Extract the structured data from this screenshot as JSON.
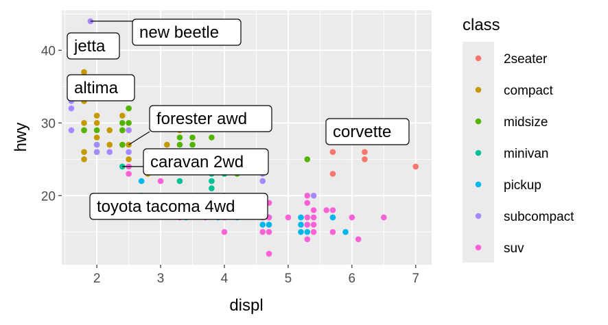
{
  "chart_data": {
    "type": "scatter",
    "xlabel": "displ",
    "ylabel": "hwy",
    "xlim": [
      1.45,
      7.25
    ],
    "ylim": [
      10.5,
      45.5
    ],
    "x_ticks": [
      2,
      3,
      4,
      5,
      6,
      7
    ],
    "y_ticks": [
      20,
      30,
      40
    ],
    "grid": true,
    "legend": {
      "title": "class",
      "position": "right",
      "entries": [
        {
          "name": "2seater",
          "color": "#F8766D"
        },
        {
          "name": "compact",
          "color": "#C49A00"
        },
        {
          "name": "midsize",
          "color": "#53B400"
        },
        {
          "name": "minivan",
          "color": "#00C094"
        },
        {
          "name": "pickup",
          "color": "#00B6EB"
        },
        {
          "name": "subcompact",
          "color": "#A58AFF"
        },
        {
          "name": "suv",
          "color": "#FB61D7"
        }
      ]
    },
    "points": [
      {
        "x": 5.7,
        "y": 26,
        "class": "2seater"
      },
      {
        "x": 5.7,
        "y": 23,
        "class": "2seater"
      },
      {
        "x": 6.2,
        "y": 26,
        "class": "2seater"
      },
      {
        "x": 6.2,
        "y": 25,
        "class": "2seater"
      },
      {
        "x": 7.0,
        "y": 24,
        "class": "2seater"
      },
      {
        "x": 1.8,
        "y": 29,
        "class": "compact"
      },
      {
        "x": 1.8,
        "y": 26,
        "class": "compact"
      },
      {
        "x": 1.8,
        "y": 25,
        "class": "compact"
      },
      {
        "x": 1.8,
        "y": 30,
        "class": "compact"
      },
      {
        "x": 1.8,
        "y": 33,
        "class": "compact"
      },
      {
        "x": 1.8,
        "y": 37,
        "class": "compact"
      },
      {
        "x": 1.8,
        "y": 35,
        "class": "compact"
      },
      {
        "x": 2.0,
        "y": 31,
        "class": "compact"
      },
      {
        "x": 2.0,
        "y": 28,
        "class": "compact"
      },
      {
        "x": 2.0,
        "y": 30,
        "class": "compact"
      },
      {
        "x": 2.0,
        "y": 26,
        "class": "compact"
      },
      {
        "x": 2.2,
        "y": 29,
        "class": "compact"
      },
      {
        "x": 2.2,
        "y": 27,
        "class": "compact"
      },
      {
        "x": 2.4,
        "y": 31,
        "class": "compact"
      },
      {
        "x": 2.4,
        "y": 29,
        "class": "compact"
      },
      {
        "x": 2.4,
        "y": 27,
        "class": "compact"
      },
      {
        "x": 2.5,
        "y": 29,
        "class": "compact"
      },
      {
        "x": 2.5,
        "y": 27,
        "class": "compact"
      },
      {
        "x": 2.5,
        "y": 25,
        "class": "compact"
      },
      {
        "x": 2.8,
        "y": 26,
        "class": "compact"
      },
      {
        "x": 2.8,
        "y": 23,
        "class": "compact"
      },
      {
        "x": 3.1,
        "y": 27,
        "class": "compact"
      },
      {
        "x": 3.3,
        "y": 29,
        "class": "compact"
      },
      {
        "x": 1.8,
        "y": 29,
        "class": "midsize"
      },
      {
        "x": 2.0,
        "y": 29,
        "class": "midsize"
      },
      {
        "x": 2.0,
        "y": 27,
        "class": "midsize"
      },
      {
        "x": 2.4,
        "y": 30,
        "class": "midsize"
      },
      {
        "x": 2.4,
        "y": 29,
        "class": "midsize"
      },
      {
        "x": 2.4,
        "y": 27,
        "class": "midsize"
      },
      {
        "x": 2.5,
        "y": 32,
        "class": "midsize"
      },
      {
        "x": 2.5,
        "y": 30,
        "class": "midsize"
      },
      {
        "x": 3.3,
        "y": 28,
        "class": "midsize"
      },
      {
        "x": 3.3,
        "y": 27,
        "class": "midsize"
      },
      {
        "x": 3.5,
        "y": 28,
        "class": "midsize"
      },
      {
        "x": 3.5,
        "y": 27,
        "class": "midsize"
      },
      {
        "x": 3.8,
        "y": 28,
        "class": "midsize"
      },
      {
        "x": 3.8,
        "y": 26,
        "class": "midsize"
      },
      {
        "x": 4.0,
        "y": 23,
        "class": "midsize"
      },
      {
        "x": 4.2,
        "y": 23,
        "class": "midsize"
      },
      {
        "x": 5.3,
        "y": 25,
        "class": "midsize"
      },
      {
        "x": 2.4,
        "y": 24,
        "class": "minivan"
      },
      {
        "x": 3.0,
        "y": 24,
        "class": "minivan"
      },
      {
        "x": 3.3,
        "y": 22,
        "class": "minivan"
      },
      {
        "x": 3.3,
        "y": 24,
        "class": "minivan"
      },
      {
        "x": 3.8,
        "y": 22,
        "class": "minivan"
      },
      {
        "x": 3.8,
        "y": 21,
        "class": "minivan"
      },
      {
        "x": 3.8,
        "y": 23,
        "class": "minivan"
      },
      {
        "x": 4.0,
        "y": 23,
        "class": "minivan"
      },
      {
        "x": 2.7,
        "y": 22,
        "class": "pickup"
      },
      {
        "x": 2.7,
        "y": 20,
        "class": "pickup"
      },
      {
        "x": 3.4,
        "y": 17,
        "class": "pickup"
      },
      {
        "x": 3.7,
        "y": 19,
        "class": "pickup"
      },
      {
        "x": 3.9,
        "y": 17,
        "class": "pickup"
      },
      {
        "x": 4.0,
        "y": 20,
        "class": "pickup"
      },
      {
        "x": 4.2,
        "y": 17,
        "class": "pickup"
      },
      {
        "x": 4.6,
        "y": 16,
        "class": "pickup"
      },
      {
        "x": 4.7,
        "y": 17,
        "class": "pickup"
      },
      {
        "x": 4.7,
        "y": 16,
        "class": "pickup"
      },
      {
        "x": 5.2,
        "y": 17,
        "class": "pickup"
      },
      {
        "x": 5.2,
        "y": 16,
        "class": "pickup"
      },
      {
        "x": 5.2,
        "y": 15,
        "class": "pickup"
      },
      {
        "x": 5.3,
        "y": 15,
        "class": "pickup"
      },
      {
        "x": 5.7,
        "y": 17,
        "class": "pickup"
      },
      {
        "x": 5.9,
        "y": 15,
        "class": "pickup"
      },
      {
        "x": 1.6,
        "y": 33,
        "class": "subcompact"
      },
      {
        "x": 1.6,
        "y": 32,
        "class": "subcompact"
      },
      {
        "x": 1.6,
        "y": 29,
        "class": "subcompact"
      },
      {
        "x": 1.8,
        "y": 34,
        "class": "subcompact"
      },
      {
        "x": 1.9,
        "y": 44,
        "class": "subcompact"
      },
      {
        "x": 1.9,
        "y": 41,
        "class": "subcompact"
      },
      {
        "x": 2.0,
        "y": 27,
        "class": "subcompact"
      },
      {
        "x": 2.0,
        "y": 26,
        "class": "subcompact"
      },
      {
        "x": 2.2,
        "y": 26,
        "class": "subcompact"
      },
      {
        "x": 2.5,
        "y": 29,
        "class": "subcompact"
      },
      {
        "x": 2.5,
        "y": 26,
        "class": "subcompact"
      },
      {
        "x": 4.6,
        "y": 23,
        "class": "subcompact"
      },
      {
        "x": 4.6,
        "y": 22,
        "class": "subcompact"
      },
      {
        "x": 5.4,
        "y": 20,
        "class": "subcompact"
      },
      {
        "x": 2.5,
        "y": 24,
        "class": "suv"
      },
      {
        "x": 2.5,
        "y": 23,
        "class": "suv"
      },
      {
        "x": 3.0,
        "y": 22,
        "class": "suv"
      },
      {
        "x": 3.3,
        "y": 17,
        "class": "suv"
      },
      {
        "x": 3.7,
        "y": 17,
        "class": "suv"
      },
      {
        "x": 4.0,
        "y": 17,
        "class": "suv"
      },
      {
        "x": 4.0,
        "y": 15,
        "class": "suv"
      },
      {
        "x": 4.6,
        "y": 19,
        "class": "suv"
      },
      {
        "x": 4.6,
        "y": 17,
        "class": "suv"
      },
      {
        "x": 4.6,
        "y": 15,
        "class": "suv"
      },
      {
        "x": 4.7,
        "y": 19,
        "class": "suv"
      },
      {
        "x": 4.7,
        "y": 17,
        "class": "suv"
      },
      {
        "x": 4.7,
        "y": 15,
        "class": "suv"
      },
      {
        "x": 4.7,
        "y": 12,
        "class": "suv"
      },
      {
        "x": 5.0,
        "y": 17,
        "class": "suv"
      },
      {
        "x": 5.3,
        "y": 20,
        "class": "suv"
      },
      {
        "x": 5.3,
        "y": 19,
        "class": "suv"
      },
      {
        "x": 5.3,
        "y": 17,
        "class": "suv"
      },
      {
        "x": 5.3,
        "y": 16,
        "class": "suv"
      },
      {
        "x": 5.3,
        "y": 14,
        "class": "suv"
      },
      {
        "x": 5.4,
        "y": 18,
        "class": "suv"
      },
      {
        "x": 5.4,
        "y": 17,
        "class": "suv"
      },
      {
        "x": 5.4,
        "y": 16,
        "class": "suv"
      },
      {
        "x": 5.4,
        "y": 15,
        "class": "suv"
      },
      {
        "x": 5.6,
        "y": 18,
        "class": "suv"
      },
      {
        "x": 5.7,
        "y": 18,
        "class": "suv"
      },
      {
        "x": 5.7,
        "y": 15,
        "class": "suv"
      },
      {
        "x": 6.0,
        "y": 17,
        "class": "suv"
      },
      {
        "x": 6.1,
        "y": 14,
        "class": "suv"
      },
      {
        "x": 6.5,
        "y": 17,
        "class": "suv"
      }
    ],
    "annotations": [
      {
        "text": "new beetle",
        "x": 1.9,
        "y": 44,
        "leader": true
      },
      {
        "text": "jetta",
        "x": 1.9,
        "y": 41,
        "leader": false
      },
      {
        "text": "altima",
        "x": 2.5,
        "y": 32,
        "leader": false
      },
      {
        "text": "forester awd",
        "x": 2.5,
        "y": 27,
        "leader": true
      },
      {
        "text": "caravan 2wd",
        "x": 2.4,
        "y": 24,
        "leader": true
      },
      {
        "text": "corvette",
        "x": 5.7,
        "y": 26,
        "leader": false
      },
      {
        "text": "toyota tacoma 4wd",
        "x": 2.7,
        "y": 20,
        "leader": false
      }
    ]
  }
}
